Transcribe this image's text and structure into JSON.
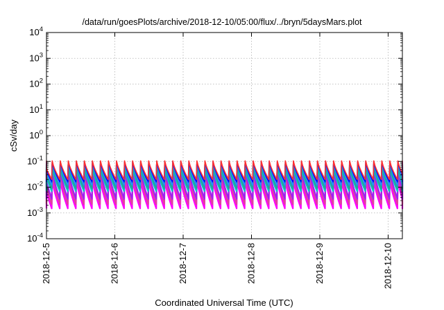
{
  "chart_data": {
    "type": "line",
    "title": "/data/run/goesPlots/archive/2018-12-10/05:00/flux/../bryn/5daysMars.plot",
    "xlabel": "Coordinated Universal Time (UTC)",
    "ylabel": "cSv/day",
    "x_type": "date",
    "x_range": [
      "2018-12-05T00:00",
      "2018-12-10T05:00"
    ],
    "x_ticks": [
      "2018-12-5",
      "2018-12-6",
      "2018-12-7",
      "2018-12-8",
      "2018-12-9",
      "2018-12-10"
    ],
    "y_scale": "log",
    "ylim": [
      0.0001,
      10000
    ],
    "y_ticks": [
      {
        "base": "10",
        "exp": "4"
      },
      {
        "base": "10",
        "exp": "3"
      },
      {
        "base": "10",
        "exp": "2"
      },
      {
        "base": "10",
        "exp": "1"
      },
      {
        "base": "10",
        "exp": "0"
      },
      {
        "base": "10",
        "exp": "-1"
      },
      {
        "base": "10",
        "exp": "-2"
      },
      {
        "base": "10",
        "exp": "-3"
      },
      {
        "base": "10",
        "exp": "-4"
      }
    ],
    "grid": true,
    "legend": "none",
    "pattern": {
      "shape": "sawtooth",
      "pulses_per_day": 8.5
    },
    "series": [
      {
        "color": "#ff00ff",
        "peak": 0.02,
        "trough": 0.0015
      },
      {
        "color": "#e040a0",
        "peak": 0.035,
        "trough": 0.0022
      },
      {
        "color": "#a020f0",
        "peak": 0.05,
        "trough": 0.0035
      },
      {
        "color": "#00c8c8",
        "peak": 0.06,
        "trough": 0.007
      },
      {
        "color": "#2aa198",
        "peak": 0.075,
        "trough": 0.009
      },
      {
        "color": "#1e90ff",
        "peak": 0.09,
        "trough": 0.012
      },
      {
        "color": "#0000ff",
        "peak": 0.1,
        "trough": 0.016
      },
      {
        "color": "#ff3030",
        "peak": 0.105,
        "trough": 0.02
      }
    ]
  }
}
